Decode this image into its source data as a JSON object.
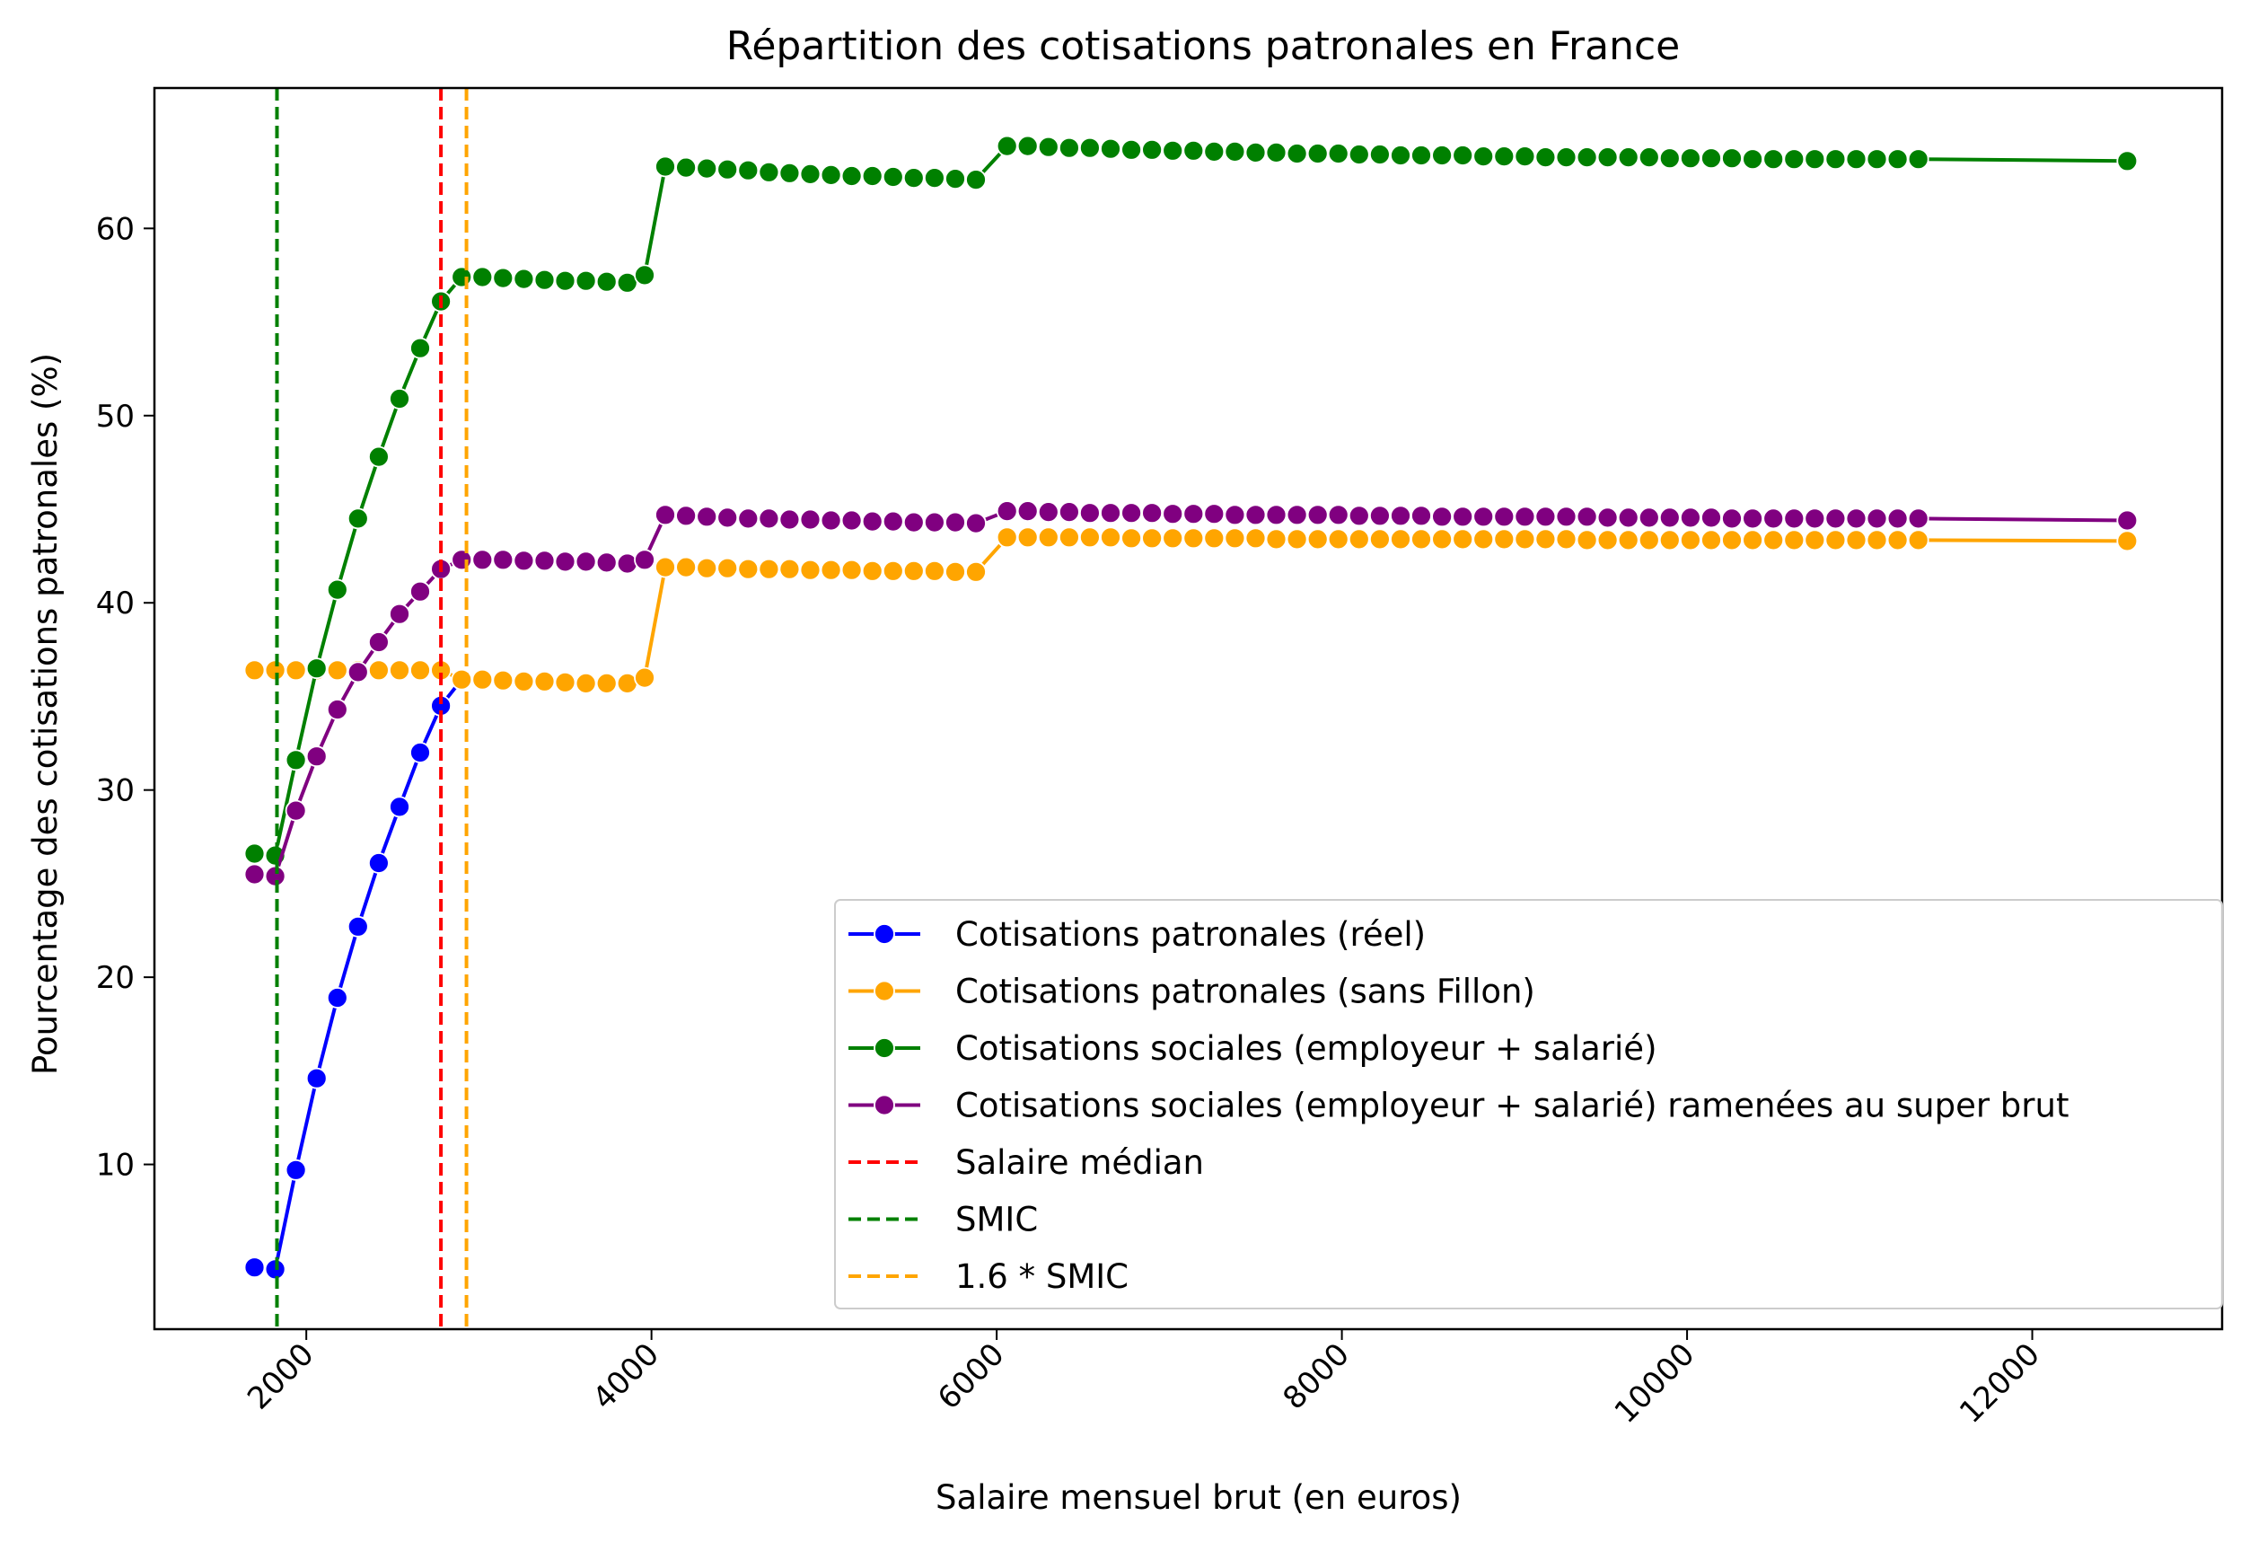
{
  "chart_data": {
    "type": "line",
    "title": "Répartition des cotisations patronales en France",
    "xlabel": "Salaire mensuel brut (en euros)",
    "ylabel": "Pourcentage des cotisations patronales (%)",
    "xlim": [
      1120,
      13100
    ],
    "ylim": [
      1.2,
      67.5
    ],
    "xticks": [
      2000,
      4000,
      6000,
      8000,
      10000,
      12000
    ],
    "xtick_labels": [
      "2000",
      "4000",
      "6000",
      "8000",
      "10000",
      "12000"
    ],
    "xtick_rotation": 45,
    "yticks": [
      10,
      20,
      30,
      40,
      50,
      60
    ],
    "ytick_labels": [
      "10",
      "20",
      "30",
      "40",
      "50",
      "60"
    ],
    "grid": false,
    "legend_position": "lower-right",
    "x": [
      1700,
      1820,
      1940,
      2060,
      2180,
      2300,
      2420,
      2540,
      2660,
      2780,
      2900,
      3020,
      3140,
      3260,
      3380,
      3500,
      3620,
      3740,
      3860,
      3960,
      4080,
      4200,
      4320,
      4440,
      4560,
      4680,
      4800,
      4920,
      5040,
      5160,
      5280,
      5400,
      5520,
      5640,
      5760,
      5880,
      6060,
      6180,
      6300,
      6420,
      6540,
      6660,
      6780,
      6900,
      7020,
      7140,
      7260,
      7380,
      7500,
      7620,
      7740,
      7860,
      7980,
      8100,
      8220,
      8340,
      8460,
      8580,
      8700,
      8820,
      8940,
      9060,
      9180,
      9300,
      9420,
      9540,
      9660,
      9780,
      9900,
      10020,
      10140,
      10260,
      10380,
      10500,
      10620,
      10740,
      10860,
      10980,
      11100,
      11220,
      11340,
      12550
    ],
    "series": [
      {
        "name": "Cotisations patronales (réel)",
        "color": "#0000ff",
        "marker": true,
        "linestyle": "solid",
        "values": [
          4.5,
          4.4,
          9.7,
          14.6,
          18.9,
          22.7,
          26.1,
          29.1,
          32.0,
          34.5,
          35.9,
          null,
          null,
          null,
          null,
          null,
          null,
          null,
          null,
          null,
          null,
          null,
          null,
          null,
          null,
          null,
          null,
          null,
          null,
          null,
          null,
          null,
          null,
          null,
          null,
          null,
          null,
          null,
          null,
          null,
          null,
          null,
          null,
          null,
          null,
          null,
          null,
          null,
          null,
          null,
          null,
          null,
          null,
          null,
          null,
          null,
          null,
          null,
          null,
          null,
          null,
          null,
          null,
          null,
          null,
          null,
          null,
          null,
          null,
          null,
          null,
          null,
          null,
          null,
          null,
          null,
          null,
          null,
          null,
          null,
          null,
          null
        ]
      },
      {
        "name": "Cotisations patronales (sans Fillon)",
        "color": "#ffa500",
        "marker": true,
        "linestyle": "solid",
        "values": [
          36.4,
          36.4,
          36.4,
          36.4,
          36.4,
          36.4,
          36.4,
          36.4,
          36.4,
          36.4,
          35.9,
          35.9,
          35.85,
          35.8,
          35.8,
          35.75,
          35.7,
          35.7,
          35.7,
          36.0,
          41.9,
          41.9,
          41.85,
          41.85,
          41.8,
          41.8,
          41.8,
          41.75,
          41.75,
          41.75,
          41.7,
          41.7,
          41.7,
          41.7,
          41.65,
          41.65,
          43.5,
          43.5,
          43.5,
          43.5,
          43.5,
          43.5,
          43.45,
          43.45,
          43.45,
          43.45,
          43.45,
          43.45,
          43.45,
          43.4,
          43.4,
          43.4,
          43.4,
          43.4,
          43.4,
          43.4,
          43.4,
          43.4,
          43.4,
          43.4,
          43.4,
          43.4,
          43.4,
          43.4,
          43.35,
          43.35,
          43.35,
          43.35,
          43.35,
          43.35,
          43.35,
          43.35,
          43.35,
          43.35,
          43.35,
          43.35,
          43.35,
          43.35,
          43.35,
          43.35,
          43.35,
          43.3
        ]
      },
      {
        "name": "Cotisations sociales (employeur + salarié)",
        "color": "#008000",
        "marker": true,
        "linestyle": "solid",
        "values": [
          26.6,
          26.5,
          31.6,
          36.5,
          40.7,
          44.5,
          47.8,
          50.9,
          53.6,
          56.1,
          57.4,
          57.4,
          57.35,
          57.3,
          57.25,
          57.2,
          57.2,
          57.15,
          57.1,
          57.5,
          63.3,
          63.25,
          63.2,
          63.15,
          63.1,
          63.0,
          62.95,
          62.9,
          62.85,
          62.8,
          62.8,
          62.75,
          62.7,
          62.7,
          62.65,
          62.6,
          64.4,
          64.4,
          64.35,
          64.3,
          64.3,
          64.25,
          64.2,
          64.2,
          64.15,
          64.15,
          64.1,
          64.1,
          64.05,
          64.05,
          64.0,
          64.0,
          64.0,
          63.95,
          63.95,
          63.9,
          63.9,
          63.9,
          63.9,
          63.85,
          63.85,
          63.85,
          63.8,
          63.8,
          63.8,
          63.8,
          63.8,
          63.8,
          63.75,
          63.75,
          63.75,
          63.75,
          63.7,
          63.7,
          63.7,
          63.7,
          63.7,
          63.7,
          63.7,
          63.7,
          63.7,
          63.6
        ]
      },
      {
        "name": "Cotisations sociales (employeur + salarié) ramenées au super brut",
        "color": "#800080",
        "marker": true,
        "linestyle": "solid",
        "values": [
          25.5,
          25.4,
          28.9,
          31.8,
          34.3,
          36.3,
          37.9,
          39.4,
          40.6,
          41.8,
          42.3,
          42.3,
          42.3,
          42.25,
          42.25,
          42.2,
          42.2,
          42.15,
          42.1,
          42.3,
          44.7,
          44.65,
          44.6,
          44.55,
          44.5,
          44.5,
          44.45,
          44.45,
          44.4,
          44.4,
          44.35,
          44.35,
          44.3,
          44.3,
          44.3,
          44.25,
          44.9,
          44.9,
          44.85,
          44.85,
          44.8,
          44.8,
          44.8,
          44.8,
          44.75,
          44.75,
          44.75,
          44.7,
          44.7,
          44.7,
          44.7,
          44.7,
          44.7,
          44.65,
          44.65,
          44.65,
          44.65,
          44.6,
          44.6,
          44.6,
          44.6,
          44.6,
          44.6,
          44.6,
          44.6,
          44.55,
          44.55,
          44.55,
          44.55,
          44.55,
          44.55,
          44.5,
          44.5,
          44.5,
          44.5,
          44.5,
          44.5,
          44.5,
          44.5,
          44.5,
          44.5,
          44.4
        ]
      }
    ],
    "vlines": [
      {
        "name": "Salaire médian",
        "x": 2780,
        "color": "#ff0000",
        "linestyle": "dashed"
      },
      {
        "name": "SMIC",
        "x": 1830,
        "color": "#008000",
        "linestyle": "dashed"
      },
      {
        "name": "1.6 * SMIC",
        "x": 2928,
        "color": "#ffa500",
        "linestyle": "dashed"
      }
    ]
  }
}
